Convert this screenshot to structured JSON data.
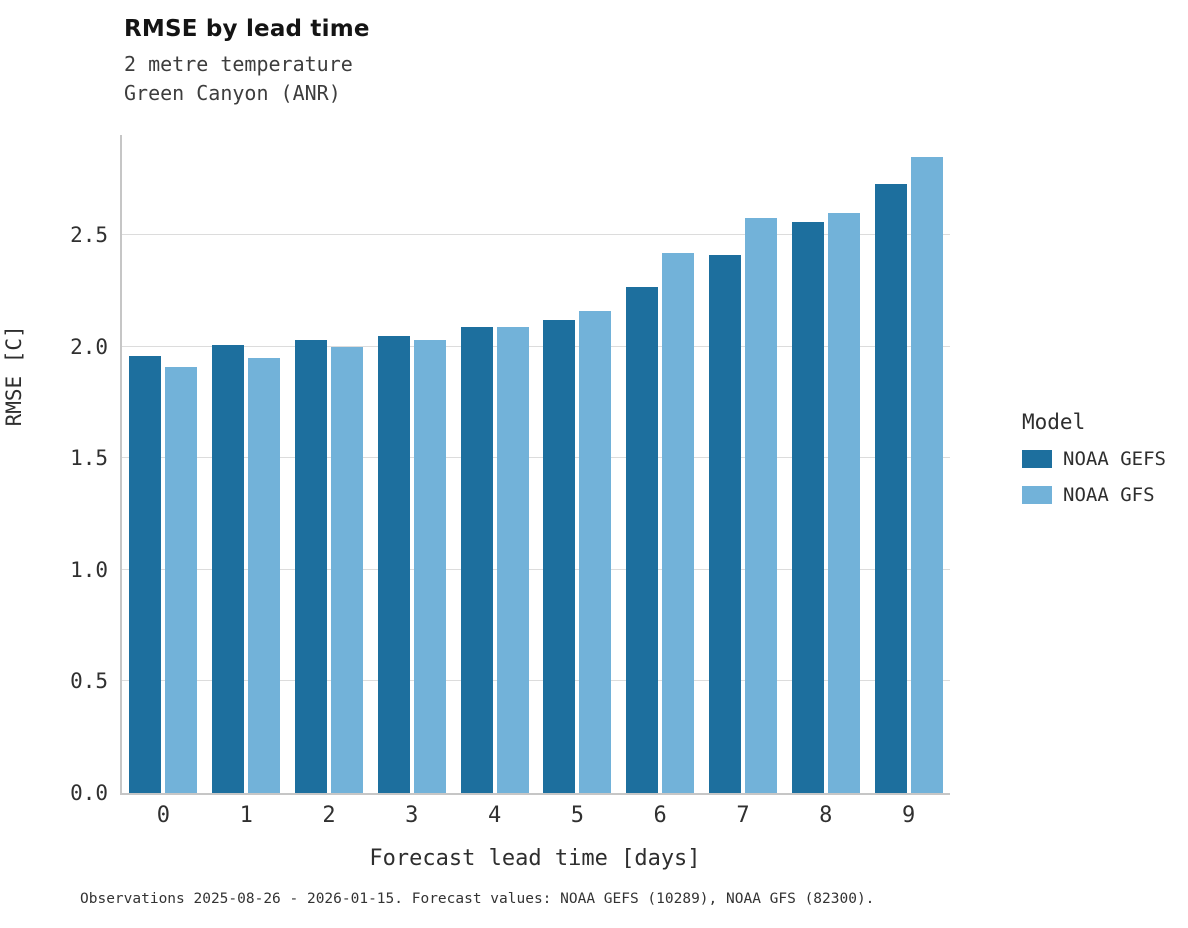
{
  "header": {
    "title": "RMSE by lead time",
    "subtitle_line1": "2 metre temperature",
    "subtitle_line2": "Green Canyon (ANR)"
  },
  "footer": {
    "caption": "Observations 2025-08-26 - 2026-01-15. Forecast values: NOAA GEFS (10289), NOAA GFS (82300)."
  },
  "legend": {
    "title": "Model",
    "entries": [
      {
        "label": "NOAA GEFS",
        "color": "#1d6f9e"
      },
      {
        "label": "NOAA GFS",
        "color": "#72b2d9"
      }
    ]
  },
  "chart_data": {
    "type": "bar",
    "title": "RMSE by lead time",
    "subtitle": "2 metre temperature / Green Canyon (ANR)",
    "xlabel": "Forecast lead time [days]",
    "ylabel": "RMSE [C]",
    "categories": [
      "0",
      "1",
      "2",
      "3",
      "4",
      "5",
      "6",
      "7",
      "8",
      "9"
    ],
    "series": [
      {
        "name": "NOAA GEFS",
        "color": "#1d6f9e",
        "values": [
          1.96,
          2.01,
          2.03,
          2.05,
          2.09,
          2.12,
          2.27,
          2.41,
          2.56,
          2.73
        ]
      },
      {
        "name": "NOAA GFS",
        "color": "#72b2d9",
        "values": [
          1.91,
          1.95,
          2.0,
          2.03,
          2.09,
          2.16,
          2.42,
          2.58,
          2.6,
          2.85
        ]
      }
    ],
    "ylim": [
      0,
      2.95
    ],
    "yticks": [
      0.0,
      0.5,
      1.0,
      1.5,
      2.0,
      2.5
    ],
    "grid": true,
    "legend_position": "right",
    "annotation": "Observations 2025-08-26 - 2026-01-15. Forecast values: NOAA GEFS (10289), NOAA GFS (82300)."
  }
}
